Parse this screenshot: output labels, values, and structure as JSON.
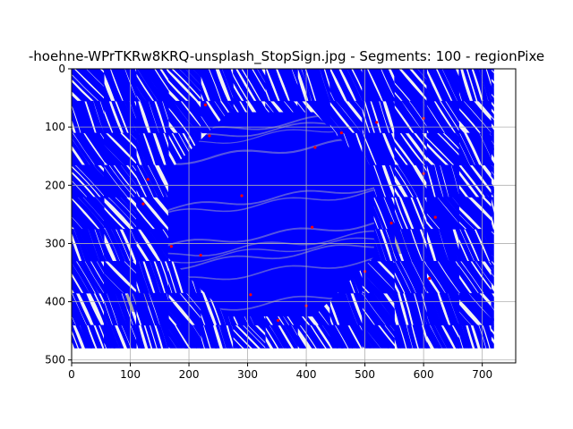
{
  "chart_data": {
    "type": "image",
    "title": "-hoehne-WPrTKRw8KRQ-unsplash_StopSign.jpg - Segments: 100 - regionPixe",
    "xlabel": "",
    "ylabel": "",
    "xlim": [
      0,
      757
    ],
    "ylim": [
      505,
      0
    ],
    "y_inverted": true,
    "grid": true,
    "x_ticks": [
      0,
      100,
      200,
      300,
      400,
      500,
      600,
      700
    ],
    "y_ticks": [
      0,
      100,
      200,
      300,
      400,
      500
    ],
    "image_extent": {
      "x": [
        0,
        720
      ],
      "y": [
        0,
        480
      ]
    },
    "colors": {
      "stroke": "#0000ff",
      "background": "#f2f2f2",
      "shadow": "#a9a9a9",
      "boundary": "#ff0000",
      "grid": "#b0b0b0"
    },
    "circle_region": {
      "center": [
        340,
        250
      ],
      "radius": 190
    },
    "tile_size": 55,
    "shadow_patches": [
      [
        110,
        400
      ],
      [
        280,
        250
      ],
      [
        560,
        300
      ],
      [
        480,
        235
      ]
    ],
    "boundary_points": [
      [
        122,
        232
      ],
      [
        228,
        62
      ],
      [
        235,
        115
      ],
      [
        290,
        218
      ],
      [
        305,
        388
      ],
      [
        415,
        135
      ],
      [
        460,
        110
      ],
      [
        600,
        180
      ],
      [
        620,
        255
      ],
      [
        500,
        348
      ],
      [
        545,
        265
      ],
      [
        400,
        407
      ],
      [
        352,
        432
      ],
      [
        170,
        305
      ],
      [
        600,
        85
      ],
      [
        220,
        320
      ],
      [
        410,
        272
      ],
      [
        520,
        92
      ],
      [
        130,
        190
      ],
      [
        610,
        360
      ]
    ],
    "flow_fields": [
      {
        "region": "outer",
        "direction_deg": 60,
        "spacing": 8
      },
      {
        "region": "circle",
        "direction_deg": 20,
        "spacing": 9
      }
    ]
  }
}
